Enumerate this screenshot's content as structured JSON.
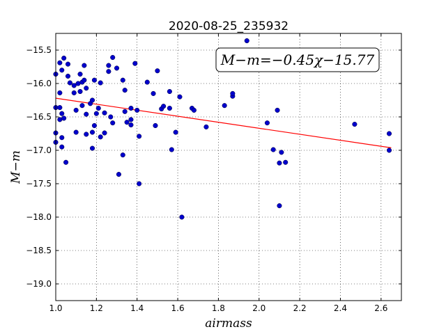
{
  "chart_data": {
    "type": "scatter",
    "title": "2020-08-25_235932",
    "xlabel": "airmass",
    "ylabel": "M−m",
    "xlim": [
      1.0,
      2.7
    ],
    "ylim": [
      -19.25,
      -15.25
    ],
    "x_ticks": [
      1.0,
      1.2,
      1.4,
      1.6,
      1.8,
      2.0,
      2.2,
      2.4,
      2.6
    ],
    "x_tick_labels": [
      "1.0",
      "1.2",
      "1.4",
      "1.6",
      "1.8",
      "2.0",
      "2.2",
      "2.4",
      "2.6"
    ],
    "y_ticks": [
      -15.5,
      -16.0,
      -16.5,
      -17.0,
      -17.5,
      -18.0,
      -18.5,
      -19.0
    ],
    "y_tick_labels": [
      "−15.5",
      "−16.0",
      "−16.5",
      "−17.0",
      "−17.5",
      "−18.0",
      "−18.5",
      "−19.0"
    ],
    "grid": true,
    "annotation": "M−m=−0.45χ−15.77",
    "annotation_position": "top-right",
    "colors": {
      "points": "#0000cc",
      "fit_line": "#ff0000"
    },
    "fit_line": {
      "slope": -0.45,
      "intercept": -15.77,
      "x_range": [
        1.0,
        2.65
      ]
    },
    "points": [
      [
        1.0,
        -15.86
      ],
      [
        1.0,
        -16.36
      ],
      [
        1.0,
        -16.74
      ],
      [
        1.0,
        -16.88
      ],
      [
        1.02,
        -15.69
      ],
      [
        1.02,
        -16.14
      ],
      [
        1.02,
        -16.36
      ],
      [
        1.02,
        -16.54
      ],
      [
        1.03,
        -15.8
      ],
      [
        1.03,
        -16.45
      ],
      [
        1.03,
        -16.81
      ],
      [
        1.03,
        -16.95
      ],
      [
        1.04,
        -15.62
      ],
      [
        1.04,
        -16.52
      ],
      [
        1.05,
        -17.18
      ],
      [
        1.06,
        -15.71
      ],
      [
        1.06,
        -15.89
      ],
      [
        1.07,
        -15.99
      ],
      [
        1.09,
        -16.03
      ],
      [
        1.09,
        -16.14
      ],
      [
        1.1,
        -16.73
      ],
      [
        1.1,
        -16.4
      ],
      [
        1.11,
        -16.0
      ],
      [
        1.12,
        -15.86
      ],
      [
        1.12,
        -16.12
      ],
      [
        1.13,
        -16.33
      ],
      [
        1.13,
        -15.98
      ],
      [
        1.14,
        -15.95
      ],
      [
        1.14,
        -15.73
      ],
      [
        1.15,
        -16.07
      ],
      [
        1.15,
        -16.46
      ],
      [
        1.15,
        -16.76
      ],
      [
        1.17,
        -16.3
      ],
      [
        1.18,
        -16.25
      ],
      [
        1.18,
        -16.73
      ],
      [
        1.18,
        -16.97
      ],
      [
        1.19,
        -15.95
      ],
      [
        1.19,
        -16.63
      ],
      [
        1.2,
        -16.45
      ],
      [
        1.21,
        -16.37
      ],
      [
        1.22,
        -15.99
      ],
      [
        1.22,
        -16.8
      ],
      [
        1.24,
        -16.44
      ],
      [
        1.24,
        -16.74
      ],
      [
        1.26,
        -15.73
      ],
      [
        1.26,
        -15.82
      ],
      [
        1.27,
        -16.5
      ],
      [
        1.28,
        -15.61
      ],
      [
        1.28,
        -16.59
      ],
      [
        1.3,
        -15.77
      ],
      [
        1.31,
        -17.36
      ],
      [
        1.33,
        -15.95
      ],
      [
        1.33,
        -17.07
      ],
      [
        1.34,
        -16.42
      ],
      [
        1.34,
        -16.1
      ],
      [
        1.35,
        -16.58
      ],
      [
        1.37,
        -16.37
      ],
      [
        1.37,
        -16.54
      ],
      [
        1.37,
        -16.62
      ],
      [
        1.39,
        -15.7
      ],
      [
        1.4,
        -16.4
      ],
      [
        1.41,
        -16.79
      ],
      [
        1.41,
        -17.5
      ],
      [
        1.45,
        -15.98
      ],
      [
        1.48,
        -16.15
      ],
      [
        1.49,
        -16.63
      ],
      [
        1.5,
        -15.81
      ],
      [
        1.52,
        -16.38
      ],
      [
        1.53,
        -16.34
      ],
      [
        1.56,
        -16.12
      ],
      [
        1.56,
        -16.37
      ],
      [
        1.57,
        -16.99
      ],
      [
        1.59,
        -16.73
      ],
      [
        1.61,
        -16.2
      ],
      [
        1.62,
        -18.0
      ],
      [
        1.67,
        -16.37
      ],
      [
        1.68,
        -16.4
      ],
      [
        1.74,
        -16.65
      ],
      [
        1.83,
        -16.33
      ],
      [
        1.87,
        -16.19
      ],
      [
        1.87,
        -16.15
      ],
      [
        1.94,
        -15.36
      ],
      [
        2.04,
        -16.59
      ],
      [
        2.07,
        -16.99
      ],
      [
        2.09,
        -16.4
      ],
      [
        2.1,
        -17.19
      ],
      [
        2.1,
        -17.83
      ],
      [
        2.11,
        -17.03
      ],
      [
        2.13,
        -17.18
      ],
      [
        2.47,
        -16.61
      ],
      [
        2.64,
        -16.75
      ],
      [
        2.64,
        -17.0
      ]
    ]
  }
}
